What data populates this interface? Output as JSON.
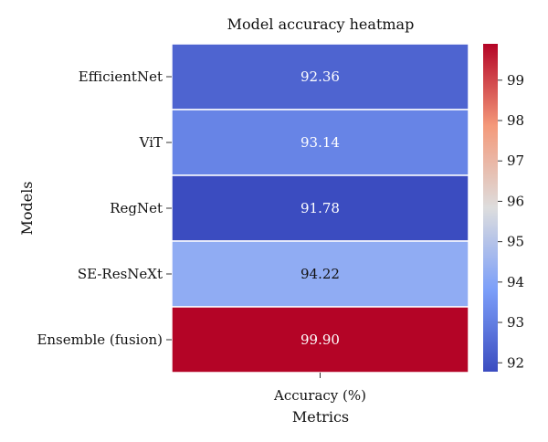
{
  "chart_data": {
    "type": "heatmap",
    "title": "Model accuracy heatmap",
    "xlabel": "Metrics",
    "ylabel": "Models",
    "columns": [
      "Accuracy (%)"
    ],
    "rows": [
      "EfficientNet",
      "ViT",
      "RegNet",
      "SE-ResNeXt",
      "Ensemble (fusion)"
    ],
    "values": [
      [
        92.36
      ],
      [
        93.14
      ],
      [
        91.78
      ],
      [
        94.22
      ],
      [
        99.9
      ]
    ],
    "value_labels": [
      "92.36",
      "93.14",
      "91.78",
      "94.22",
      "99.90"
    ],
    "colormap": "coolwarm",
    "colorbar": {
      "vmin": 91.78,
      "vmax": 99.9,
      "ticks": [
        92,
        93,
        94,
        95,
        96,
        97,
        98,
        99
      ]
    },
    "grid": false,
    "legend": "right"
  }
}
